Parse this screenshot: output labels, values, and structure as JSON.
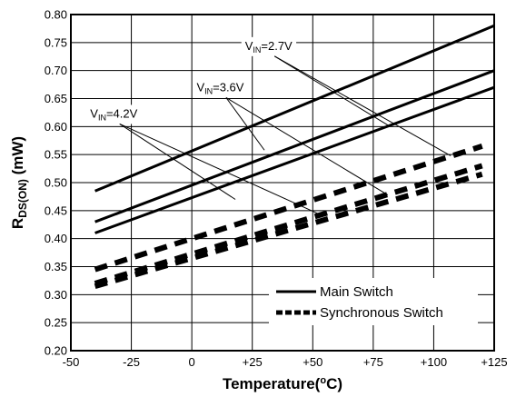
{
  "chart_data": {
    "type": "line",
    "title": "",
    "xlabel": "Temperature(°C)",
    "ylabel": "RDS(ON) (mW)",
    "xlim": [
      -50,
      125
    ],
    "ylim": [
      0.2,
      0.8
    ],
    "x_ticks": [
      "-50",
      "-25",
      "0",
      "+25",
      "+50",
      "+75",
      "+100",
      "+125"
    ],
    "y_ticks": [
      "0.20",
      "0.25",
      "0.30",
      "0.35",
      "0.40",
      "0.45",
      "0.50",
      "0.55",
      "0.60",
      "0.65",
      "0.70",
      "0.75",
      "0.80"
    ],
    "grid": true,
    "legend_position": "bottom-right",
    "legend": [
      {
        "label": "Main Switch",
        "style": "solid"
      },
      {
        "label": "Synchronous Switch",
        "style": "dashed"
      }
    ],
    "series": [
      {
        "name": "Main Switch",
        "condition": "VIN=2.7V",
        "style": "solid",
        "x": [
          -40,
          125
        ],
        "y": [
          0.485,
          0.78
        ]
      },
      {
        "name": "Main Switch",
        "condition": "VIN=3.6V",
        "style": "solid",
        "x": [
          -40,
          125
        ],
        "y": [
          0.43,
          0.7
        ]
      },
      {
        "name": "Main Switch",
        "condition": "VIN=4.2V",
        "style": "solid",
        "x": [
          -40,
          125
        ],
        "y": [
          0.41,
          0.67
        ]
      },
      {
        "name": "Synchronous Switch",
        "condition": "VIN=2.7V",
        "style": "dashed",
        "x": [
          -40,
          120
        ],
        "y": [
          0.345,
          0.565
        ]
      },
      {
        "name": "Synchronous Switch",
        "condition": "VIN=3.6V",
        "style": "dashed",
        "x": [
          -40,
          120
        ],
        "y": [
          0.32,
          0.53
        ]
      },
      {
        "name": "Synchronous Switch",
        "condition": "VIN=4.2V",
        "style": "dashed",
        "x": [
          -40,
          120
        ],
        "y": [
          0.315,
          0.515
        ]
      }
    ],
    "annotations": [
      {
        "prefix": "V",
        "sub": "IN",
        "suffix": "=2.7V",
        "label_at": [
          22,
          0.737
        ],
        "pointers": [
          [
            82,
            0.6
          ],
          [
            107,
            0.548
          ]
        ]
      },
      {
        "prefix": "V",
        "sub": "IN",
        "suffix": "=3.6V",
        "label_at": [
          2,
          0.663
        ],
        "pointers": [
          [
            30,
            0.558
          ],
          [
            81,
            0.478
          ]
        ]
      },
      {
        "prefix": "V",
        "sub": "IN",
        "suffix": "=4.2V",
        "label_at": [
          -42,
          0.616
        ],
        "pointers": [
          [
            18,
            0.47
          ],
          [
            52,
            0.445
          ]
        ]
      }
    ]
  }
}
